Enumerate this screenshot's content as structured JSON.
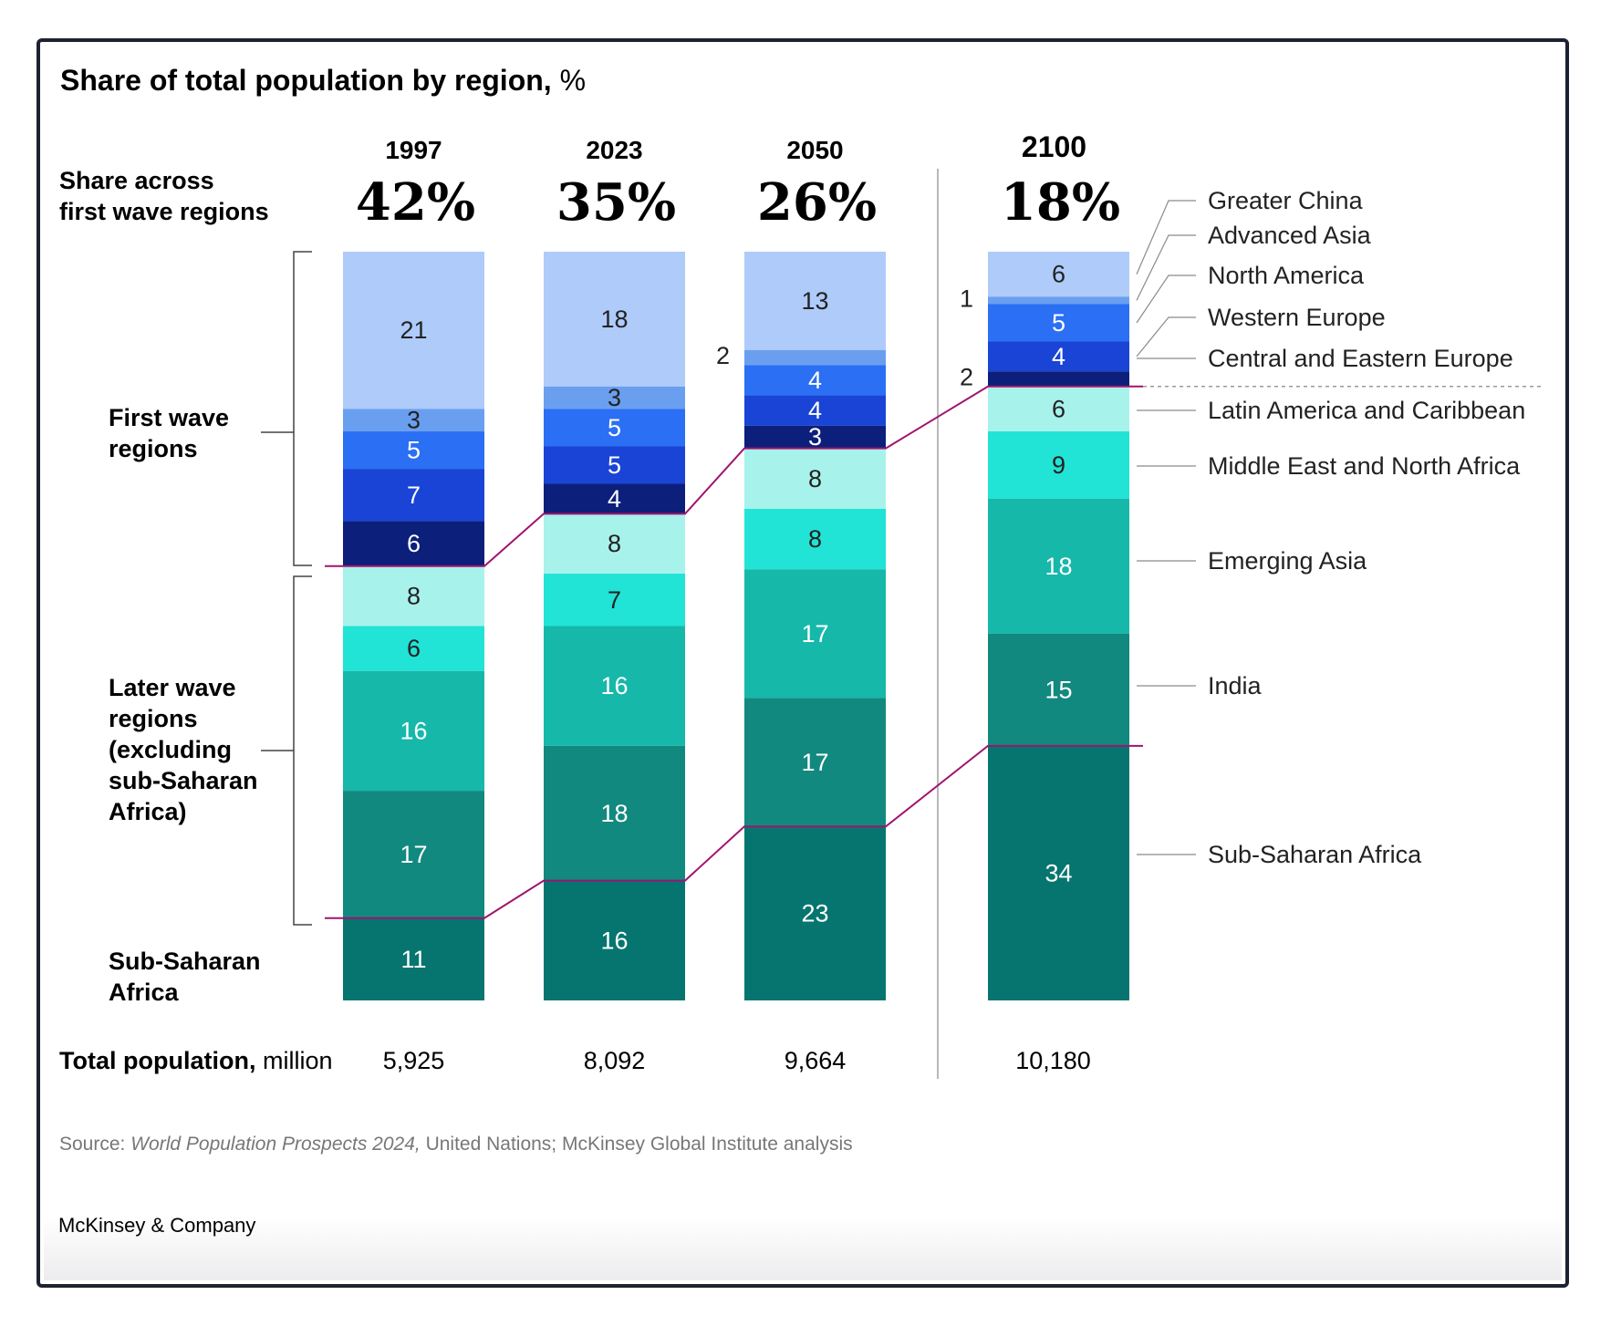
{
  "title": {
    "bold": "Share of total population by region,",
    "unit": " %"
  },
  "share_label": [
    "Share across",
    "first wave regions"
  ],
  "group_labels": {
    "first_wave": [
      "First wave",
      "regions"
    ],
    "later_wave": [
      "Later wave",
      "regions",
      "(excluding",
      "sub-Saharan",
      "Africa)"
    ],
    "ssa": [
      "Sub-Saharan",
      "Africa"
    ]
  },
  "total_label": {
    "bold": "Total population,",
    "unit": " million"
  },
  "source": {
    "prefix": "Source: ",
    "italic": "World Population Prospects 2024,",
    "rest": " United Nations; McKinsey Global Institute analysis"
  },
  "brand": "McKinsey & Company",
  "colors": {
    "Greater China": "#aecbfa",
    "Advanced Asia": "#6a9ff0",
    "North America": "#2a6ff4",
    "Western Europe": "#1a44d6",
    "Central and Eastern Europe": "#0c1f7a",
    "Latin America and Caribbean": "#a8f2ec",
    "Middle East and North Africa": "#21e3d6",
    "Emerging Asia": "#16b8aa",
    "India": "#11897f",
    "Sub-Saharan Africa": "#06756f",
    "connector": "#a0146e"
  },
  "chart_data": {
    "type": "bar",
    "stacked": true,
    "title": "Share of total population by region, %",
    "categories": [
      "1997",
      "2023",
      "2050",
      "2100"
    ],
    "first_wave_share": [
      "42%",
      "35%",
      "26%",
      "18%"
    ],
    "total_population_million": [
      "5,925",
      "8,092",
      "9,664",
      "10,180"
    ],
    "ylim": [
      0,
      100
    ],
    "series": [
      {
        "name": "Greater China",
        "values": [
          21,
          18,
          13,
          6
        ]
      },
      {
        "name": "Advanced Asia",
        "values": [
          3,
          3,
          2,
          1
        ]
      },
      {
        "name": "North America",
        "values": [
          5,
          5,
          4,
          5
        ]
      },
      {
        "name": "Western Europe",
        "values": [
          7,
          5,
          4,
          4
        ]
      },
      {
        "name": "Central and Eastern Europe",
        "values": [
          6,
          4,
          3,
          2
        ]
      },
      {
        "name": "Latin America and Caribbean",
        "values": [
          8,
          8,
          8,
          6
        ]
      },
      {
        "name": "Middle East and North Africa",
        "values": [
          6,
          7,
          8,
          9
        ]
      },
      {
        "name": "Emerging Asia",
        "values": [
          16,
          16,
          17,
          18
        ]
      },
      {
        "name": "India",
        "values": [
          17,
          18,
          17,
          15
        ]
      },
      {
        "name": "Sub-Saharan Africa",
        "values": [
          11,
          16,
          23,
          34
        ]
      }
    ]
  }
}
